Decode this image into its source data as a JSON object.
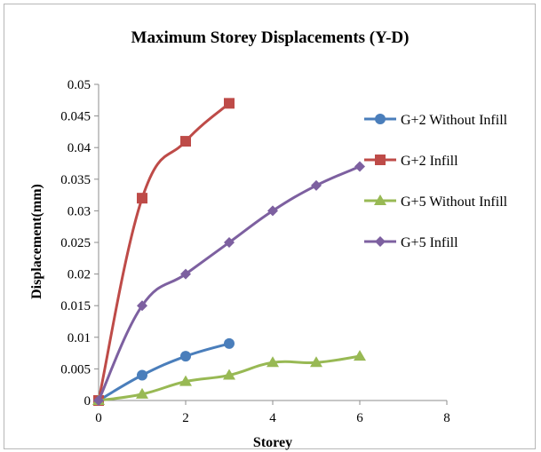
{
  "chart_data": {
    "type": "scatter",
    "title": "Maximum Storey Displacements (Y-D)",
    "xlabel": "Storey",
    "ylabel": "Displacement(mm)",
    "xlim": [
      0,
      8
    ],
    "ylim": [
      0,
      0.05
    ],
    "x_ticks": [
      "0",
      "2",
      "4",
      "6",
      "8"
    ],
    "y_ticks": [
      "0",
      "0.005",
      "0.01",
      "0.015",
      "0.02",
      "0.025",
      "0.03",
      "0.035",
      "0.04",
      "0.045",
      "0.05"
    ],
    "grid": false,
    "legend_position": "right",
    "series": [
      {
        "name": "G+2 Without Infill",
        "color": "#4a7ebb",
        "marker": "circle",
        "x": [
          0,
          1,
          2,
          3
        ],
        "y": [
          0,
          0.004,
          0.007,
          0.009
        ]
      },
      {
        "name": "G+2 Infill",
        "color": "#be4b48",
        "marker": "square",
        "x": [
          0,
          1,
          2,
          3
        ],
        "y": [
          0,
          0.032,
          0.041,
          0.047
        ]
      },
      {
        "name": "G+5 Without Infill",
        "color": "#98b954",
        "marker": "triangle",
        "x": [
          0,
          1,
          2,
          3,
          4,
          5,
          6
        ],
        "y": [
          0,
          0.001,
          0.003,
          0.004,
          0.006,
          0.006,
          0.007
        ]
      },
      {
        "name": "G+5 Infill",
        "color": "#7d60a0",
        "marker": "diamond",
        "x": [
          0,
          1,
          2,
          3,
          4,
          5,
          6
        ],
        "y": [
          0,
          0.015,
          0.02,
          0.025,
          0.03,
          0.034,
          0.037
        ]
      }
    ]
  }
}
